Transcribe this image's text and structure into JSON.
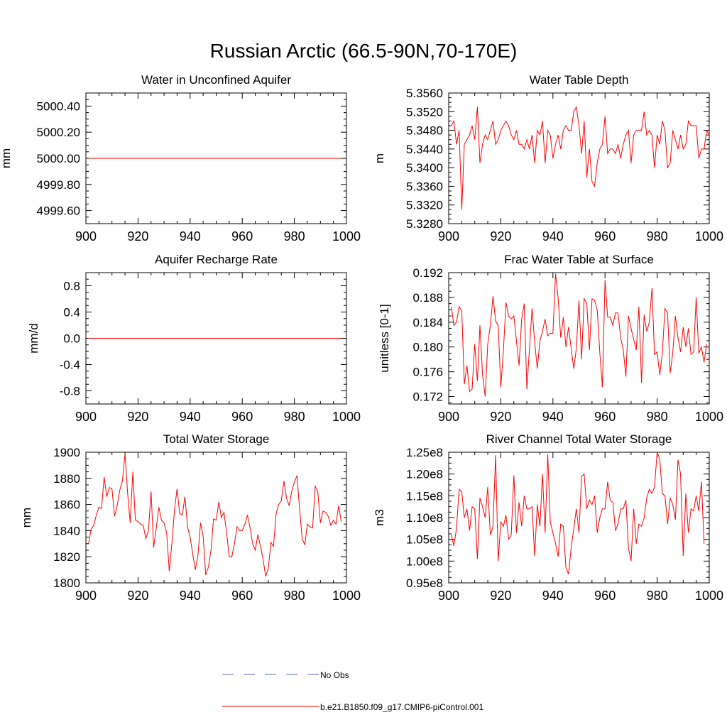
{
  "figure_title": "Russian Arctic (66.5-90N,70-170E)",
  "colors": {
    "series": "#ff0000",
    "obs": "#5566aa",
    "axis": "#000000"
  },
  "legend": [
    {
      "label": "No Obs",
      "style": "dashed",
      "color": "#5566aa"
    },
    {
      "label": "b.e21.B1850.f09_g17.CMIP6-piControl.001",
      "style": "solid",
      "color": "#ff0000"
    }
  ],
  "chart_data": [
    {
      "type": "line",
      "title": "Water in Unconfined Aquifer",
      "ylabel": "mm",
      "xlim": [
        900,
        1000
      ],
      "ylim": [
        4999.5,
        5000.5
      ],
      "xticks": [
        900,
        920,
        940,
        960,
        980,
        1000
      ],
      "yticks": [
        4999.6,
        4999.8,
        5000.0,
        5000.2,
        5000.4
      ],
      "yticklabels": [
        "4999.60",
        "4999.80",
        "5000.00",
        "5000.20",
        "5000.40"
      ],
      "x": [
        901,
        998
      ],
      "values": [
        5000.0,
        5000.0
      ]
    },
    {
      "type": "line",
      "title": "Water Table Depth",
      "ylabel": "m",
      "xlim": [
        900,
        1000
      ],
      "ylim": [
        5.328,
        5.356
      ],
      "xticks": [
        900,
        920,
        940,
        960,
        980,
        1000
      ],
      "yticks": [
        5.328,
        5.332,
        5.336,
        5.34,
        5.344,
        5.348,
        5.352,
        5.356
      ],
      "yticklabels": [
        "5.3280",
        "5.3320",
        "5.3360",
        "5.3400",
        "5.3440",
        "5.3480",
        "5.3520",
        "5.3560"
      ],
      "x_start": 901,
      "values": [
        5.349,
        5.35,
        5.345,
        5.348,
        5.331,
        5.345,
        5.346,
        5.347,
        5.349,
        5.346,
        5.353,
        5.341,
        5.345,
        5.347,
        5.346,
        5.348,
        5.35,
        5.345,
        5.346,
        5.348,
        5.349,
        5.35,
        5.349,
        5.347,
        5.346,
        5.348,
        5.345,
        5.345,
        5.344,
        5.346,
        5.344,
        5.347,
        5.341,
        5.348,
        5.347,
        5.35,
        5.341,
        5.348,
        5.347,
        5.342,
        5.345,
        5.347,
        5.344,
        5.348,
        5.349,
        5.348,
        5.348,
        5.352,
        5.353,
        5.349,
        5.343,
        5.35,
        5.338,
        5.344,
        5.337,
        5.336,
        5.341,
        5.344,
        5.345,
        5.351,
        5.343,
        5.344,
        5.344,
        5.343,
        5.345,
        5.342,
        5.345,
        5.347,
        5.348,
        5.341,
        5.347,
        5.348,
        5.348,
        5.348,
        5.352,
        5.347,
        5.348,
        5.347,
        5.34,
        5.347,
        5.345,
        5.35,
        5.348,
        5.34,
        5.341,
        5.348,
        5.346,
        5.344,
        5.347,
        5.344,
        5.345,
        5.35,
        5.349,
        5.349,
        5.349,
        5.342,
        5.344,
        5.344,
        5.348,
        5.347
      ]
    },
    {
      "type": "line",
      "title": "Aquifer Recharge Rate",
      "ylabel": "mm/d",
      "xlim": [
        900,
        1000
      ],
      "ylim": [
        -1.0,
        1.0
      ],
      "xticks": [
        900,
        920,
        940,
        960,
        980,
        1000
      ],
      "yticks": [
        -0.8,
        -0.4,
        0.0,
        0.4,
        0.8
      ],
      "yticklabels": [
        "-0.8",
        "-0.4",
        "0.0",
        "0.4",
        "0.8"
      ],
      "x": [
        901,
        998
      ],
      "values": [
        0.0,
        0.0
      ]
    },
    {
      "type": "line",
      "title": "Frac Water Table at Surface",
      "ylabel": "unitless [0-1]",
      "xlim": [
        900,
        1000
      ],
      "ylim": [
        0.1708,
        0.192
      ],
      "xticks": [
        900,
        920,
        940,
        960,
        980,
        1000
      ],
      "yticks": [
        0.172,
        0.176,
        0.18,
        0.184,
        0.188,
        0.192
      ],
      "yticklabels": [
        "0.172",
        "0.176",
        "0.180",
        "0.184",
        "0.188",
        "0.192"
      ],
      "x_start": 901,
      "values": [
        0.1865,
        0.1835,
        0.184,
        0.1865,
        0.1858,
        0.174,
        0.177,
        0.1728,
        0.1732,
        0.1805,
        0.1745,
        0.1835,
        0.1755,
        0.172,
        0.1805,
        0.1835,
        0.1882,
        0.1842,
        0.1835,
        0.1735,
        0.1795,
        0.1872,
        0.185,
        0.1845,
        0.185,
        0.181,
        0.177,
        0.1845,
        0.187,
        0.1732,
        0.1798,
        0.1862,
        0.1808,
        0.1765,
        0.181,
        0.1825,
        0.1845,
        0.1818,
        0.1822,
        0.1822,
        0.1918,
        0.188,
        0.1815,
        0.1848,
        0.18,
        0.1832,
        0.1798,
        0.1765,
        0.1798,
        0.1875,
        0.178,
        0.1878,
        0.187,
        0.1795,
        0.1878,
        0.1875,
        0.186,
        0.179,
        0.1735,
        0.1908,
        0.1848,
        0.1848,
        0.1835,
        0.1855,
        0.1855,
        0.1815,
        0.1795,
        0.1752,
        0.185,
        0.183,
        0.1812,
        0.1795,
        0.1865,
        0.1742,
        0.1852,
        0.1825,
        0.184,
        0.1895,
        0.1788,
        0.1792,
        0.1755,
        0.179,
        0.1862,
        0.1855,
        0.1758,
        0.179,
        0.185,
        0.1815,
        0.1792,
        0.1832,
        0.18,
        0.183,
        0.1788,
        0.1792,
        0.188,
        0.179,
        0.18,
        0.1775,
        0.1805
      ]
    },
    {
      "type": "line",
      "title": "Total Water Storage",
      "ylabel": "mm",
      "xlim": [
        900,
        1000
      ],
      "ylim": [
        1800,
        1900
      ],
      "xticks": [
        900,
        920,
        940,
        960,
        980,
        1000
      ],
      "yticks": [
        1800,
        1820,
        1840,
        1860,
        1880,
        1900
      ],
      "yticklabels": [
        "1800",
        "1820",
        "1840",
        "1860",
        "1880",
        "1900"
      ],
      "x_start": 901,
      "values": [
        1830,
        1841,
        1844,
        1852,
        1858,
        1857,
        1881,
        1866,
        1873,
        1872,
        1851,
        1859,
        1871,
        1878,
        1899,
        1869,
        1846,
        1885,
        1848,
        1847,
        1845,
        1844,
        1834,
        1840,
        1870,
        1827,
        1842,
        1858,
        1848,
        1846,
        1838,
        1809,
        1830,
        1856,
        1872,
        1853,
        1852,
        1866,
        1843,
        1835,
        1822,
        1810,
        1821,
        1846,
        1836,
        1806,
        1812,
        1825,
        1849,
        1848,
        1862,
        1850,
        1854,
        1838,
        1820,
        1820,
        1830,
        1843,
        1840,
        1840,
        1845,
        1852,
        1842,
        1830,
        1825,
        1837,
        1828,
        1818,
        1805,
        1811,
        1831,
        1828,
        1853,
        1860,
        1863,
        1878,
        1865,
        1859,
        1870,
        1877,
        1882,
        1857,
        1834,
        1829,
        1845,
        1843,
        1842,
        1874,
        1870,
        1846,
        1855,
        1854,
        1851,
        1844,
        1848,
        1845,
        1859,
        1847
      ]
    },
    {
      "type": "line",
      "title": "River Channel Total Water Storage",
      "ylabel": "m3",
      "xlim": [
        900,
        1000
      ],
      "ylim": [
        95000000.0,
        125000000.0
      ],
      "xticks": [
        900,
        920,
        940,
        960,
        980,
        1000
      ],
      "yticks": [
        95000000.0,
        100000000.0,
        105000000.0,
        110000000.0,
        115000000.0,
        120000000.0,
        125000000.0
      ],
      "yticklabels": [
        "0.95e8",
        "1.00e8",
        "1.05e8",
        "1.10e8",
        "1.15e8",
        "1.20e8",
        "1.25e8"
      ],
      "x_start": 901,
      "values": [
        106000000.0,
        103500000.0,
        107500000.0,
        116500000.0,
        116000000.0,
        110000000.0,
        112000000.0,
        107000000.0,
        112500000.0,
        112000000.0,
        100500000.0,
        114500000.0,
        112500000.0,
        110000000.0,
        117000000.0,
        106000000.0,
        108000000.0,
        124300000.0,
        100000000.0,
        109000000.0,
        108000000.0,
        110500000.0,
        105000000.0,
        106000000.0,
        119700000.0,
        106500000.0,
        113500000.0,
        108000000.0,
        115000000.0,
        112000000.0,
        112000000.0,
        112500000.0,
        101200000.0,
        113000000.0,
        108000000.0,
        120000000.0,
        106500000.0,
        124500000.0,
        109000000.0,
        106500000.0,
        104000000.0,
        101000000.0,
        108500000.0,
        108000000.0,
        98500000.0,
        97000000.0,
        103000000.0,
        107500000.0,
        112000000.0,
        106500000.0,
        119500000.0,
        120000000.0,
        112000000.0,
        114000000.0,
        113000000.0,
        115000000.0,
        106500000.0,
        110000000.0,
        112000000.0,
        112000000.0,
        118200000.0,
        114000000.0,
        113500000.0,
        107000000.0,
        108500000.0,
        112000000.0,
        112000000.0,
        114000000.0,
        103000000.0,
        100000000.0,
        112000000.0,
        104000000.0,
        108500000.0,
        108000000.0,
        110000000.0,
        114500000.0,
        116500000.0,
        115500000.0,
        117000000.0,
        125000000.0,
        123500000.0,
        115500000.0,
        115000000.0,
        108500000.0,
        114500000.0,
        113000000.0,
        109500000.0,
        123300000.0,
        120000000.0,
        101200000.0,
        115500000.0,
        106500000.0,
        112000000.0,
        111500000.0,
        115000000.0,
        111500000.0,
        118200000.0,
        104000000.0
      ]
    }
  ]
}
